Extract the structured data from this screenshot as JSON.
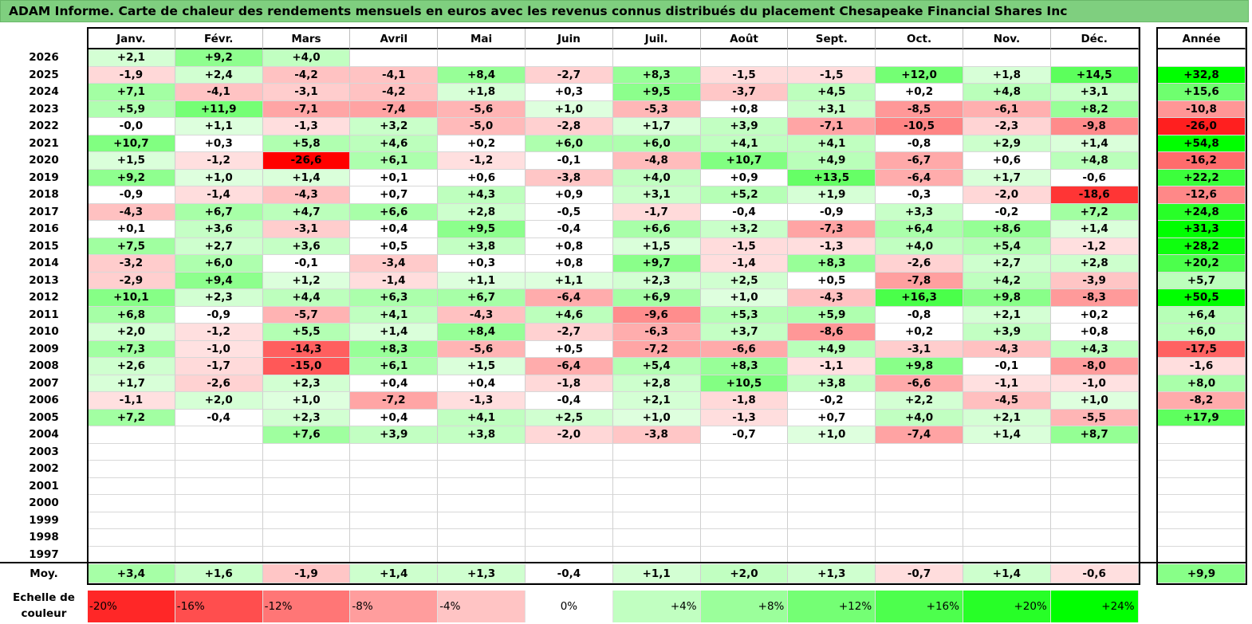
{
  "title": "ADAM Informe. Carte de chaleur des rendements mensuels en euros avec les revenus connus distribués du placement Chesapeake Financial Shares Inc",
  "year_header": "Année",
  "avg_label": "Moy.",
  "scale_label_line1": "Echelle de",
  "scale_label_line2": "couleur",
  "colors": {
    "max_red": "#ff0000",
    "max_green": "#00ff00",
    "title_bg": "#7fcf7f",
    "border": "#000000"
  },
  "chart_data": {
    "type": "heatmap",
    "title": "ADAM Informe. Carte de chaleur des rendements mensuels en euros avec les revenus connus distribués du placement Chesapeake Financial Shares Inc",
    "columns": [
      "Janv.",
      "Févr.",
      "Mars",
      "Avril",
      "Mai",
      "Juin",
      "Juil.",
      "Août",
      "Sept.",
      "Oct.",
      "Nov.",
      "Déc."
    ],
    "rows": [
      {
        "year": "2026",
        "months": [
          "+2,1",
          "+9,2",
          "+4,0",
          "",
          "",
          "",
          "",
          "",
          "",
          "",
          "",
          ""
        ],
        "annual": ""
      },
      {
        "year": "2025",
        "months": [
          "-1,9",
          "+2,4",
          "-4,2",
          "-4,1",
          "+8,4",
          "-2,7",
          "+8,3",
          "-1,5",
          "-1,5",
          "+12,0",
          "+1,8",
          "+14,5"
        ],
        "annual": "+32,8"
      },
      {
        "year": "2024",
        "months": [
          "+7,1",
          "-4,1",
          "-3,1",
          "-4,2",
          "+1,8",
          "+0,3",
          "+9,5",
          "-3,7",
          "+4,5",
          "+0,2",
          "+4,8",
          "+3,1"
        ],
        "annual": "+15,6"
      },
      {
        "year": "2023",
        "months": [
          "+5,9",
          "+11,9",
          "-7,1",
          "-7,4",
          "-5,6",
          "+1,0",
          "-5,3",
          "+0,8",
          "+3,1",
          "-8,5",
          "-6,1",
          "+8,2"
        ],
        "annual": "-10,8"
      },
      {
        "year": "2022",
        "months": [
          "-0,0",
          "+1,1",
          "-1,3",
          "+3,2",
          "-5,0",
          "-2,8",
          "+1,7",
          "+3,9",
          "-7,1",
          "-10,5",
          "-2,3",
          "-9,8"
        ],
        "annual": "-26,0"
      },
      {
        "year": "2021",
        "months": [
          "+10,7",
          "+0,3",
          "+5,8",
          "+4,6",
          "+0,2",
          "+6,0",
          "+6,0",
          "+4,1",
          "+4,1",
          "-0,8",
          "+2,9",
          "+1,4"
        ],
        "annual": "+54,8"
      },
      {
        "year": "2020",
        "months": [
          "+1,5",
          "-1,2",
          "-26,6",
          "+6,1",
          "-1,2",
          "-0,1",
          "-4,8",
          "+10,7",
          "+4,9",
          "-6,7",
          "+0,6",
          "+4,8"
        ],
        "annual": "-16,2"
      },
      {
        "year": "2019",
        "months": [
          "+9,2",
          "+1,0",
          "+1,4",
          "+0,1",
          "+0,6",
          "-3,8",
          "+4,0",
          "+0,9",
          "+13,5",
          "-6,4",
          "+1,7",
          "-0,6"
        ],
        "annual": "+22,2"
      },
      {
        "year": "2018",
        "months": [
          "-0,9",
          "-1,4",
          "-4,3",
          "+0,7",
          "+4,3",
          "+0,9",
          "+3,1",
          "+5,2",
          "+1,9",
          "-0,3",
          "-2,0",
          "-18,6"
        ],
        "annual": "-12,6"
      },
      {
        "year": "2017",
        "months": [
          "-4,3",
          "+6,7",
          "+4,7",
          "+6,6",
          "+2,8",
          "-0,5",
          "-1,7",
          "-0,4",
          "-0,9",
          "+3,3",
          "-0,2",
          "+7,2"
        ],
        "annual": "+24,8"
      },
      {
        "year": "2016",
        "months": [
          "+0,1",
          "+3,6",
          "-3,1",
          "+0,4",
          "+9,5",
          "-0,4",
          "+6,6",
          "+3,2",
          "-7,3",
          "+6,4",
          "+8,6",
          "+1,4"
        ],
        "annual": "+31,3"
      },
      {
        "year": "2015",
        "months": [
          "+7,5",
          "+2,7",
          "+3,6",
          "+0,5",
          "+3,8",
          "+0,8",
          "+1,5",
          "-1,5",
          "-1,3",
          "+4,0",
          "+5,4",
          "-1,2"
        ],
        "annual": "+28,2"
      },
      {
        "year": "2014",
        "months": [
          "-3,2",
          "+6,0",
          "-0,1",
          "-3,4",
          "+0,3",
          "+0,8",
          "+9,7",
          "-1,4",
          "+8,3",
          "-2,6",
          "+2,7",
          "+2,8"
        ],
        "annual": "+20,2"
      },
      {
        "year": "2013",
        "months": [
          "-2,9",
          "+9,4",
          "+1,2",
          "-1,4",
          "+1,1",
          "+1,1",
          "+2,3",
          "+2,5",
          "+0,5",
          "-7,8",
          "+4,2",
          "-3,9"
        ],
        "annual": "+5,7"
      },
      {
        "year": "2012",
        "months": [
          "+10,1",
          "+2,3",
          "+4,4",
          "+6,3",
          "+6,7",
          "-6,4",
          "+6,9",
          "+1,0",
          "-4,3",
          "+16,3",
          "+9,8",
          "-8,3"
        ],
        "annual": "+50,5"
      },
      {
        "year": "2011",
        "months": [
          "+6,8",
          "-0,9",
          "-5,7",
          "+4,1",
          "-4,3",
          "+4,6",
          "-9,6",
          "+5,3",
          "+5,9",
          "-0,8",
          "+2,1",
          "+0,2"
        ],
        "annual": "+6,4"
      },
      {
        "year": "2010",
        "months": [
          "+2,0",
          "-1,2",
          "+5,5",
          "+1,4",
          "+8,4",
          "-2,7",
          "-6,3",
          "+3,7",
          "-8,6",
          "+0,2",
          "+3,9",
          "+0,8"
        ],
        "annual": "+6,0"
      },
      {
        "year": "2009",
        "months": [
          "+7,3",
          "-1,0",
          "-14,3",
          "+8,3",
          "-5,6",
          "+0,5",
          "-7,2",
          "-6,6",
          "+4,9",
          "-3,1",
          "-4,3",
          "+4,3"
        ],
        "annual": "-17,5"
      },
      {
        "year": "2008",
        "months": [
          "+2,6",
          "-1,7",
          "-15,0",
          "+6,1",
          "+1,5",
          "-6,4",
          "+5,4",
          "+8,3",
          "-1,1",
          "+9,8",
          "-0,1",
          "-8,0"
        ],
        "annual": "-1,6"
      },
      {
        "year": "2007",
        "months": [
          "+1,7",
          "-2,6",
          "+2,3",
          "+0,4",
          "+0,4",
          "-1,8",
          "+2,8",
          "+10,5",
          "+3,8",
          "-6,6",
          "-1,1",
          "-1,0"
        ],
        "annual": "+8,0"
      },
      {
        "year": "2006",
        "months": [
          "-1,1",
          "+2,0",
          "+1,0",
          "-7,2",
          "-1,3",
          "-0,4",
          "+2,1",
          "-1,8",
          "-0,2",
          "+2,2",
          "-4,5",
          "+1,0"
        ],
        "annual": "-8,2"
      },
      {
        "year": "2005",
        "months": [
          "+7,2",
          "-0,4",
          "+2,3",
          "+0,4",
          "+4,1",
          "+2,5",
          "+1,0",
          "-1,3",
          "+0,7",
          "+4,0",
          "+2,1",
          "-5,5"
        ],
        "annual": "+17,9"
      },
      {
        "year": "2004",
        "months": [
          "",
          "",
          "+7,6",
          "+3,9",
          "+3,8",
          "-2,0",
          "-3,8",
          "-0,7",
          "+1,0",
          "-7,4",
          "+1,4",
          "+8,7"
        ],
        "annual": ""
      },
      {
        "year": "2003",
        "months": [
          "",
          "",
          "",
          "",
          "",
          "",
          "",
          "",
          "",
          "",
          "",
          ""
        ],
        "annual": ""
      },
      {
        "year": "2002",
        "months": [
          "",
          "",
          "",
          "",
          "",
          "",
          "",
          "",
          "",
          "",
          "",
          ""
        ],
        "annual": ""
      },
      {
        "year": "2001",
        "months": [
          "",
          "",
          "",
          "",
          "",
          "",
          "",
          "",
          "",
          "",
          "",
          ""
        ],
        "annual": ""
      },
      {
        "year": "2000",
        "months": [
          "",
          "",
          "",
          "",
          "",
          "",
          "",
          "",
          "",
          "",
          "",
          ""
        ],
        "annual": ""
      },
      {
        "year": "1999",
        "months": [
          "",
          "",
          "",
          "",
          "",
          "",
          "",
          "",
          "",
          "",
          "",
          ""
        ],
        "annual": ""
      },
      {
        "year": "1998",
        "months": [
          "",
          "",
          "",
          "",
          "",
          "",
          "",
          "",
          "",
          "",
          "",
          ""
        ],
        "annual": ""
      },
      {
        "year": "1997",
        "months": [
          "",
          "",
          "",
          "",
          "",
          "",
          "",
          "",
          "",
          "",
          "",
          ""
        ],
        "annual": ""
      }
    ],
    "averages": [
      "+3,4",
      "+1,6",
      "-1,9",
      "+1,4",
      "+1,3",
      "-0,4",
      "+1,1",
      "+2,0",
      "+1,3",
      "-0,7",
      "+1,4",
      "-0,6"
    ],
    "average_annual": "+9,9",
    "color_scale": [
      "-20%",
      "-16%",
      "-12%",
      "-8%",
      "-4%",
      "0%",
      "+4%",
      "+8%",
      "+12%",
      "+16%",
      "+20%",
      "+24%"
    ]
  }
}
